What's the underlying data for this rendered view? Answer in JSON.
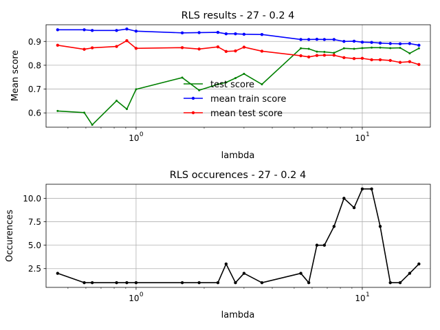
{
  "chart_data": [
    {
      "type": "line",
      "title": "RLS results - 27 - 0.2 4",
      "xlabel": "lambda",
      "ylabel": "Mean score",
      "xscale": "log",
      "xlim": [
        0.4,
        20
      ],
      "ylim": [
        0.54,
        0.97
      ],
      "xticks": [
        {
          "value": 1,
          "base": "10",
          "exp": "0"
        },
        {
          "value": 10,
          "base": "10",
          "exp": "1"
        }
      ],
      "yticks": [
        {
          "value": 0.6,
          "label": "0.6"
        },
        {
          "value": 0.7,
          "label": "0.7"
        },
        {
          "value": 0.8,
          "label": "0.8"
        },
        {
          "value": 0.9,
          "label": "0.9"
        }
      ],
      "grid": true,
      "legend_position": "center",
      "series": [
        {
          "name": "test score",
          "color": "#008000",
          "marker": false,
          "points": [
            [
              0.45,
              0.608
            ],
            [
              0.59,
              0.601
            ],
            [
              0.64,
              0.55
            ],
            [
              0.82,
              0.651
            ],
            [
              0.91,
              0.616
            ],
            [
              1.0,
              0.699
            ],
            [
              1.6,
              0.748
            ],
            [
              1.9,
              0.695
            ],
            [
              2.3,
              0.72
            ],
            [
              2.5,
              0.728
            ],
            [
              2.75,
              0.746
            ],
            [
              3.0,
              0.764
            ],
            [
              3.6,
              0.72
            ],
            [
              5.35,
              0.871
            ],
            [
              5.8,
              0.869
            ],
            [
              6.3,
              0.857
            ],
            [
              6.8,
              0.856
            ],
            [
              7.5,
              0.852
            ],
            [
              8.3,
              0.871
            ],
            [
              9.2,
              0.869
            ],
            [
              10.0,
              0.872
            ],
            [
              11.0,
              0.874
            ],
            [
              12.0,
              0.874
            ],
            [
              13.3,
              0.872
            ],
            [
              14.7,
              0.873
            ],
            [
              16.2,
              0.85
            ],
            [
              17.8,
              0.871
            ]
          ]
        },
        {
          "name": "mean train score",
          "color": "#0000ff",
          "marker": true,
          "points": [
            [
              0.45,
              0.949
            ],
            [
              0.59,
              0.949
            ],
            [
              0.64,
              0.946
            ],
            [
              0.82,
              0.946
            ],
            [
              0.91,
              0.952
            ],
            [
              1.0,
              0.943
            ],
            [
              1.6,
              0.936
            ],
            [
              1.9,
              0.937
            ],
            [
              2.3,
              0.938
            ],
            [
              2.5,
              0.932
            ],
            [
              2.75,
              0.932
            ],
            [
              3.0,
              0.93
            ],
            [
              3.6,
              0.929
            ],
            [
              5.35,
              0.908
            ],
            [
              5.8,
              0.908
            ],
            [
              6.3,
              0.909
            ],
            [
              6.8,
              0.908
            ],
            [
              7.5,
              0.908
            ],
            [
              8.3,
              0.9
            ],
            [
              9.2,
              0.901
            ],
            [
              10.0,
              0.897
            ],
            [
              11.0,
              0.896
            ],
            [
              12.0,
              0.893
            ],
            [
              13.3,
              0.891
            ],
            [
              14.7,
              0.89
            ],
            [
              16.2,
              0.891
            ],
            [
              17.8,
              0.884
            ]
          ]
        },
        {
          "name": "mean test score",
          "color": "#ff0000",
          "marker": true,
          "points": [
            [
              0.45,
              0.884
            ],
            [
              0.59,
              0.867
            ],
            [
              0.64,
              0.873
            ],
            [
              0.82,
              0.879
            ],
            [
              0.91,
              0.903
            ],
            [
              1.0,
              0.871
            ],
            [
              1.6,
              0.874
            ],
            [
              1.9,
              0.868
            ],
            [
              2.3,
              0.877
            ],
            [
              2.5,
              0.858
            ],
            [
              2.75,
              0.86
            ],
            [
              3.0,
              0.876
            ],
            [
              3.6,
              0.859
            ],
            [
              5.35,
              0.84
            ],
            [
              5.8,
              0.835
            ],
            [
              6.3,
              0.841
            ],
            [
              6.8,
              0.842
            ],
            [
              7.5,
              0.842
            ],
            [
              8.3,
              0.832
            ],
            [
              9.2,
              0.828
            ],
            [
              10.0,
              0.829
            ],
            [
              11.0,
              0.823
            ],
            [
              12.0,
              0.823
            ],
            [
              13.3,
              0.82
            ],
            [
              14.7,
              0.812
            ],
            [
              16.2,
              0.815
            ],
            [
              17.8,
              0.803
            ]
          ]
        }
      ]
    },
    {
      "type": "line",
      "title": "RLS occurences - 27 - 0.2 4",
      "xlabel": "lambda",
      "ylabel": "Occurences",
      "xscale": "log",
      "xlim": [
        0.4,
        20
      ],
      "ylim": [
        0.5,
        11.5
      ],
      "xticks": [
        {
          "value": 1,
          "base": "10",
          "exp": "0"
        },
        {
          "value": 10,
          "base": "10",
          "exp": "1"
        }
      ],
      "yticks": [
        {
          "value": 2.5,
          "label": "2.5"
        },
        {
          "value": 5.0,
          "label": "5.0"
        },
        {
          "value": 7.5,
          "label": "7.5"
        },
        {
          "value": 10.0,
          "label": "10.0"
        }
      ],
      "grid": true,
      "series": [
        {
          "color": "#000000",
          "marker": true,
          "points": [
            [
              0.45,
              2
            ],
            [
              0.59,
              1
            ],
            [
              0.64,
              1
            ],
            [
              0.82,
              1
            ],
            [
              0.91,
              1
            ],
            [
              1.0,
              1
            ],
            [
              1.6,
              1
            ],
            [
              1.9,
              1
            ],
            [
              2.3,
              1
            ],
            [
              2.5,
              3
            ],
            [
              2.75,
              1
            ],
            [
              3.0,
              2
            ],
            [
              3.6,
              1
            ],
            [
              5.35,
              2
            ],
            [
              5.8,
              1
            ],
            [
              6.3,
              5
            ],
            [
              6.8,
              5
            ],
            [
              7.5,
              7
            ],
            [
              8.3,
              10
            ],
            [
              9.2,
              9
            ],
            [
              10.0,
              11
            ],
            [
              11.0,
              11
            ],
            [
              12.0,
              7
            ],
            [
              13.3,
              1
            ],
            [
              14.7,
              1
            ],
            [
              16.2,
              2
            ],
            [
              17.8,
              3
            ]
          ]
        }
      ]
    }
  ]
}
